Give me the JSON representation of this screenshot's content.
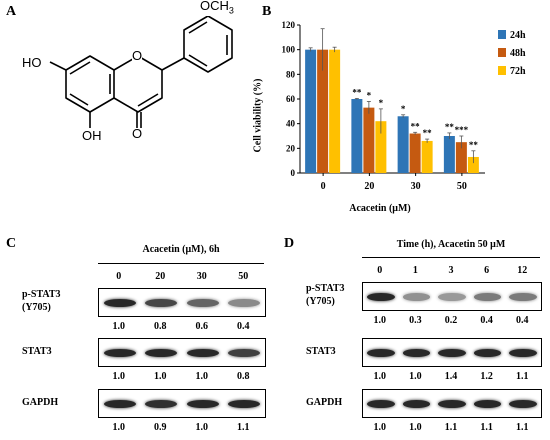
{
  "panel_a": {
    "label": "A",
    "atoms": {
      "ho": "HO",
      "ring_o": "O",
      "carbonyl_o": "O",
      "oh": "OH",
      "och3": "OCH",
      "och3_sub": "3"
    }
  },
  "panel_b": {
    "label": "B",
    "colors": {
      "24h": "#2E75B6",
      "48h": "#C55A11",
      "72h": "#FFC000"
    },
    "chart_data": {
      "type": "bar",
      "categories": [
        "0",
        "20",
        "30",
        "50"
      ],
      "series": [
        {
          "name": "24h",
          "values": [
            100,
            60,
            46,
            30
          ],
          "errors": [
            1.5,
            0.5,
            1.2,
            2.5
          ]
        },
        {
          "name": "48h",
          "values": [
            100,
            53,
            32,
            25
          ],
          "errors": [
            17,
            5,
            1,
            5
          ]
        },
        {
          "name": "72h",
          "values": [
            100,
            42,
            26,
            13
          ],
          "errors": [
            2,
            10,
            1.5,
            5
          ]
        }
      ],
      "significance": [
        [
          "",
          "",
          ""
        ],
        [
          "**",
          "*",
          "*"
        ],
        [
          "*",
          "**",
          "**"
        ],
        [
          "**",
          "***",
          "**"
        ]
      ],
      "xlabel": "Acacetin (μM)",
      "ylabel": "Cell viability (%)",
      "ylim": [
        0,
        120
      ],
      "yticks": [
        "0",
        "20",
        "40",
        "60",
        "80",
        "100",
        "120"
      ],
      "legend_position": "right",
      "grid": false
    }
  },
  "panel_c": {
    "label": "C",
    "header": "Acacetin (μM), 6h",
    "lanes": [
      "0",
      "20",
      "30",
      "50"
    ],
    "blots": [
      {
        "label_line1": "p-STAT3",
        "label_line2": "(Y705)",
        "ratios": [
          "1.0",
          "0.8",
          "0.6",
          "0.4"
        ],
        "intensity": [
          1.0,
          0.8,
          0.6,
          0.35
        ]
      },
      {
        "label_line1": "STAT3",
        "label_line2": "",
        "ratios": [
          "1.0",
          "1.0",
          "1.0",
          "0.8"
        ],
        "intensity": [
          1.0,
          1.0,
          1.0,
          0.85
        ]
      },
      {
        "label_line1": "GAPDH",
        "label_line2": "",
        "ratios": [
          "1.0",
          "0.9",
          "1.0",
          "1.1"
        ],
        "intensity": [
          1.0,
          0.95,
          1.0,
          1.0
        ]
      }
    ]
  },
  "panel_d": {
    "label": "D",
    "header": "Time (h), Acacetin 50 μM",
    "lanes": [
      "0",
      "1",
      "3",
      "6",
      "12"
    ],
    "blots": [
      {
        "label_line1": "p-STAT3",
        "label_line2": "(Y705)",
        "ratios": [
          "1.0",
          "0.3",
          "0.2",
          "0.4",
          "0.4"
        ],
        "intensity": [
          1.0,
          0.3,
          0.25,
          0.45,
          0.45
        ]
      },
      {
        "label_line1": "STAT3",
        "label_line2": "",
        "ratios": [
          "1.0",
          "1.0",
          "1.4",
          "1.2",
          "1.1"
        ],
        "intensity": [
          1.0,
          1.0,
          1.0,
          1.0,
          1.0
        ]
      },
      {
        "label_line1": "GAPDH",
        "label_line2": "",
        "ratios": [
          "1.0",
          "1.0",
          "1.1",
          "1.1",
          "1.1"
        ],
        "intensity": [
          1.0,
          1.0,
          1.0,
          1.0,
          1.0
        ]
      }
    ]
  }
}
